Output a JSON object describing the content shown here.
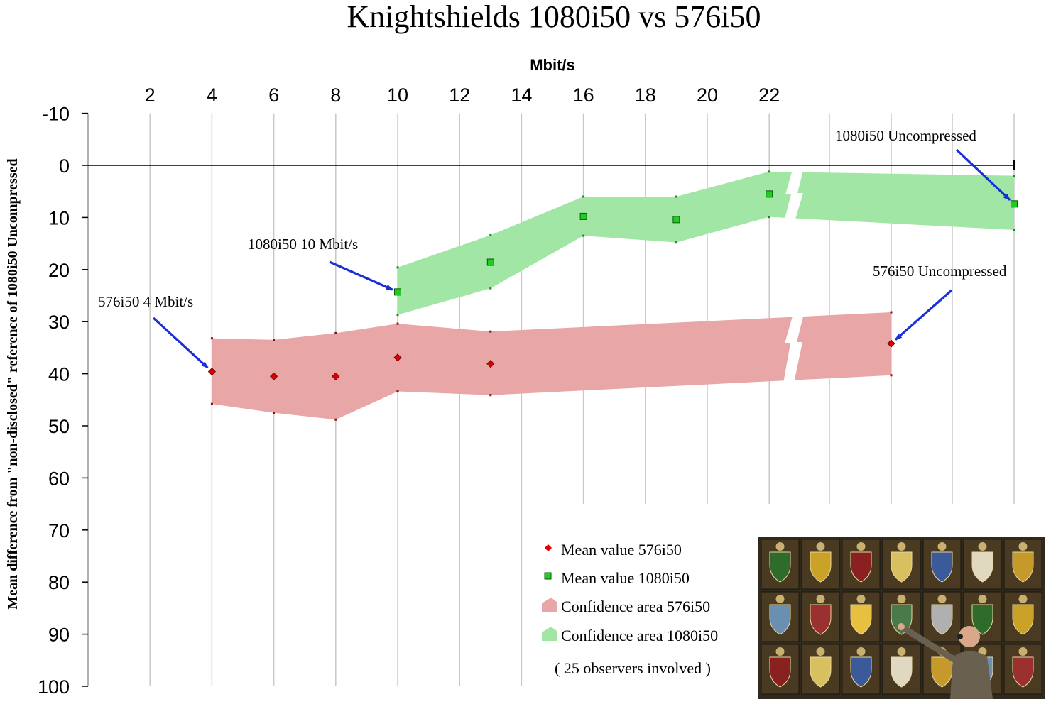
{
  "chart_data": {
    "type": "area",
    "title": "Knightshields 1080i50 vs 576i50",
    "xlabel": "Mbit/s",
    "ylabel": "Mean difference from \"non-disclosed\" reference of 1080i50 Uncompressed",
    "x_tick_labels": [
      "2",
      "4",
      "6",
      "8",
      "10",
      "12",
      "14",
      "16",
      "18",
      "20",
      "22"
    ],
    "y_tick_labels": [
      "-10",
      "0",
      "10",
      "20",
      "30",
      "40",
      "50",
      "60",
      "70",
      "80",
      "90",
      "100"
    ],
    "xlim": [
      0,
      28
    ],
    "ylim": [
      -10,
      100
    ],
    "y_inverted": true,
    "x_axis_position": "top",
    "x_axis_break_after": 22,
    "grid": true,
    "legend_position": "bottom-center",
    "series": [
      {
        "name": "Mean value 576i50",
        "marker": "diamond",
        "color": "#dd0000",
        "points": [
          {
            "x": 4,
            "y": 39.6
          },
          {
            "x": 6,
            "y": 40.5
          },
          {
            "x": 8,
            "y": 40.5
          },
          {
            "x": 10,
            "y": 36.9
          },
          {
            "x": 13,
            "y": 38.1
          },
          {
            "x": "576i50 Uncompressed",
            "y": 34.2
          }
        ]
      },
      {
        "name": "Mean value 1080i50",
        "marker": "square",
        "color": "#22cc22",
        "points": [
          {
            "x": 10,
            "y": 24.3
          },
          {
            "x": 13,
            "y": 18.6
          },
          {
            "x": 16,
            "y": 9.8
          },
          {
            "x": 19,
            "y": 10.4
          },
          {
            "x": 22,
            "y": 5.5
          },
          {
            "x": "1080i50 Uncompressed",
            "y": 7.4
          }
        ]
      },
      {
        "name": "Confidence area 576i50",
        "color": "#e8a6a6",
        "points": [
          {
            "x": 4,
            "low": 33.2,
            "high": 45.8
          },
          {
            "x": 6,
            "low": 33.5,
            "high": 47.5
          },
          {
            "x": 8,
            "low": 32.2,
            "high": 48.8
          },
          {
            "x": 10,
            "low": 30.4,
            "high": 43.4
          },
          {
            "x": 13,
            "low": 31.9,
            "high": 44.1
          },
          {
            "x": "576i50 Uncompressed",
            "low": 28.2,
            "high": 40.3
          }
        ]
      },
      {
        "name": "Confidence area 1080i50",
        "color": "#a2e6a6",
        "points": [
          {
            "x": 10,
            "low": 19.6,
            "high": 28.7
          },
          {
            "x": 13,
            "low": 13.4,
            "high": 23.6
          },
          {
            "x": 16,
            "low": 6.0,
            "high": 13.5
          },
          {
            "x": 19,
            "low": 6.0,
            "high": 14.8
          },
          {
            "x": 22,
            "low": 1.2,
            "high": 9.9
          },
          {
            "x": "1080i50 Uncompressed",
            "low": 2.0,
            "high": 12.4
          }
        ]
      }
    ],
    "annotations": [
      {
        "text": "576i50  4 Mbit/s",
        "points_to": {
          "x": 4,
          "y": 39.6
        }
      },
      {
        "text": "1080i50  10 Mbit/s",
        "points_to": {
          "x": 10,
          "y": 24.3
        }
      },
      {
        "text": "1080i50 Uncompressed",
        "points_to": {
          "x": "1080i50 Uncompressed",
          "y": 7.4
        }
      },
      {
        "text": "576i50 Uncompressed",
        "points_to": {
          "x": "576i50 Uncompressed",
          "y": 34.2
        }
      }
    ],
    "legend": [
      {
        "label": "Mean value 576i50",
        "symbol": "diamond",
        "color": "#dd0000"
      },
      {
        "label": "Mean value 1080i50",
        "symbol": "square",
        "color": "#22cc22"
      },
      {
        "label": "Confidence area 576i50",
        "symbol": "area",
        "color": "#e8a6a6"
      },
      {
        "label": "Confidence area 1080i50",
        "symbol": "area",
        "color": "#a2e6a6"
      }
    ],
    "note": "( 25 observers involved )",
    "colors": {
      "arrow": "#1a2fd6",
      "grid": "#c8c8c8"
    }
  }
}
